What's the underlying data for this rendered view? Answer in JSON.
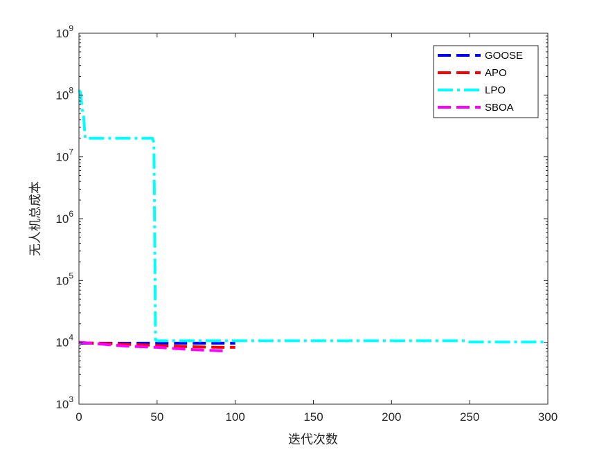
{
  "chart_data": {
    "type": "line",
    "title": "",
    "xlabel": "迭代次数",
    "ylabel": "无人机总成本",
    "xlim": [
      0,
      300
    ],
    "ylim": [
      1000,
      1000000000
    ],
    "yscale": "log",
    "grid": false,
    "legend_position": "top-right",
    "x_ticks": [
      0,
      50,
      100,
      150,
      200,
      250,
      300
    ],
    "x_tick_labels": [
      "0",
      "50",
      "100",
      "150",
      "200",
      "250",
      "300"
    ],
    "y_ticks": [
      {
        "value": 1000,
        "base": "10",
        "exp": "3"
      },
      {
        "value": 10000,
        "base": "10",
        "exp": "4"
      },
      {
        "value": 100000,
        "base": "10",
        "exp": "5"
      },
      {
        "value": 1000000,
        "base": "10",
        "exp": "6"
      },
      {
        "value": 10000000,
        "base": "10",
        "exp": "7"
      },
      {
        "value": 100000000,
        "base": "10",
        "exp": "8"
      },
      {
        "value": 1000000000,
        "base": "10",
        "exp": "9"
      }
    ],
    "series": [
      {
        "name": "GOOSE",
        "color": "#0000ff",
        "dash": "long",
        "x": [
          1,
          100
        ],
        "y": [
          9700,
          9700
        ]
      },
      {
        "name": "APO",
        "color": "#ff0000",
        "dash": "long",
        "x": [
          1,
          2,
          5,
          15,
          30,
          45,
          55,
          65,
          80,
          90,
          100
        ],
        "y": [
          10000,
          9900,
          9800,
          9600,
          9300,
          9000,
          8800,
          8600,
          8400,
          8300,
          8300
        ]
      },
      {
        "name": "LPO",
        "color": "#00ffff",
        "dash": "dashdot",
        "x": [
          0,
          1,
          2,
          3,
          4,
          5,
          10,
          47,
          48,
          49,
          50,
          100,
          248,
          250,
          300
        ],
        "y": [
          120000000,
          110000000,
          60000000,
          45000000,
          20000000,
          20000000,
          20000000,
          20000000,
          17000000,
          11000,
          10600,
          10600,
          10600,
          10100,
          10100
        ]
      },
      {
        "name": "SBOA",
        "color": "#ff00ff",
        "dash": "long",
        "x": [
          0,
          10,
          20,
          30,
          40,
          50,
          60,
          70,
          80,
          90,
          95
        ],
        "y": [
          10000,
          9600,
          9100,
          8700,
          8500,
          8300,
          8000,
          7700,
          7500,
          7300,
          7300
        ]
      }
    ]
  }
}
